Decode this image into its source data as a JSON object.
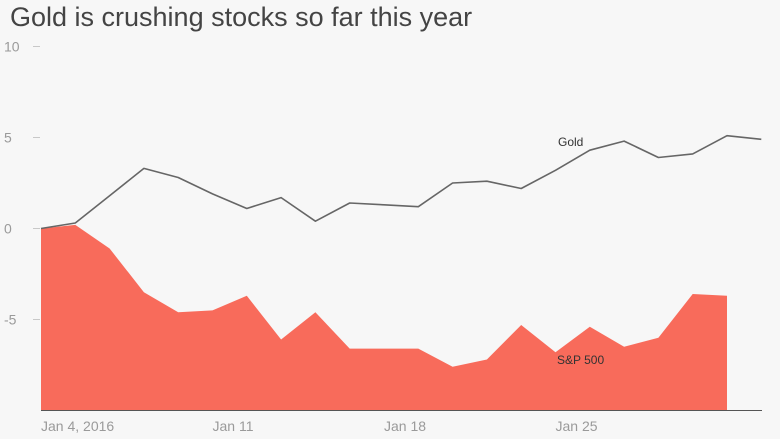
{
  "chart_data": {
    "type": "area",
    "title": "Gold is crushing stocks so far this year",
    "xlabel": "",
    "ylabel": "",
    "ylim": [
      -10,
      10
    ],
    "grid": false,
    "legend": "inline labels",
    "yticks": [
      10,
      5,
      0,
      -5
    ],
    "xticks": [
      {
        "label": "Jan 4, 2016",
        "index": 0
      },
      {
        "label": "Jan 11",
        "index": 5
      },
      {
        "label": "Jan 18",
        "index": 10
      },
      {
        "label": "Jan 25",
        "index": 15
      }
    ],
    "series": [
      {
        "name": "Gold",
        "kind": "line",
        "color": "#666666",
        "values": [
          0.0,
          0.3,
          1.8,
          3.3,
          2.8,
          1.9,
          1.1,
          1.7,
          0.4,
          1.4,
          1.3,
          1.2,
          2.5,
          2.6,
          2.2,
          3.2,
          4.3,
          4.8,
          3.9,
          4.1,
          5.1,
          4.9
        ]
      },
      {
        "name": "S&P 500",
        "kind": "area",
        "color": "#f86b5b",
        "values": [
          0.0,
          0.2,
          -1.1,
          -3.5,
          -4.6,
          -4.5,
          -3.7,
          -6.1,
          -4.6,
          -6.6,
          -6.6,
          -6.6,
          -7.6,
          -7.2,
          -5.3,
          -6.8,
          -5.4,
          -6.5,
          -6.0,
          -3.6,
          -3.7
        ]
      }
    ]
  }
}
